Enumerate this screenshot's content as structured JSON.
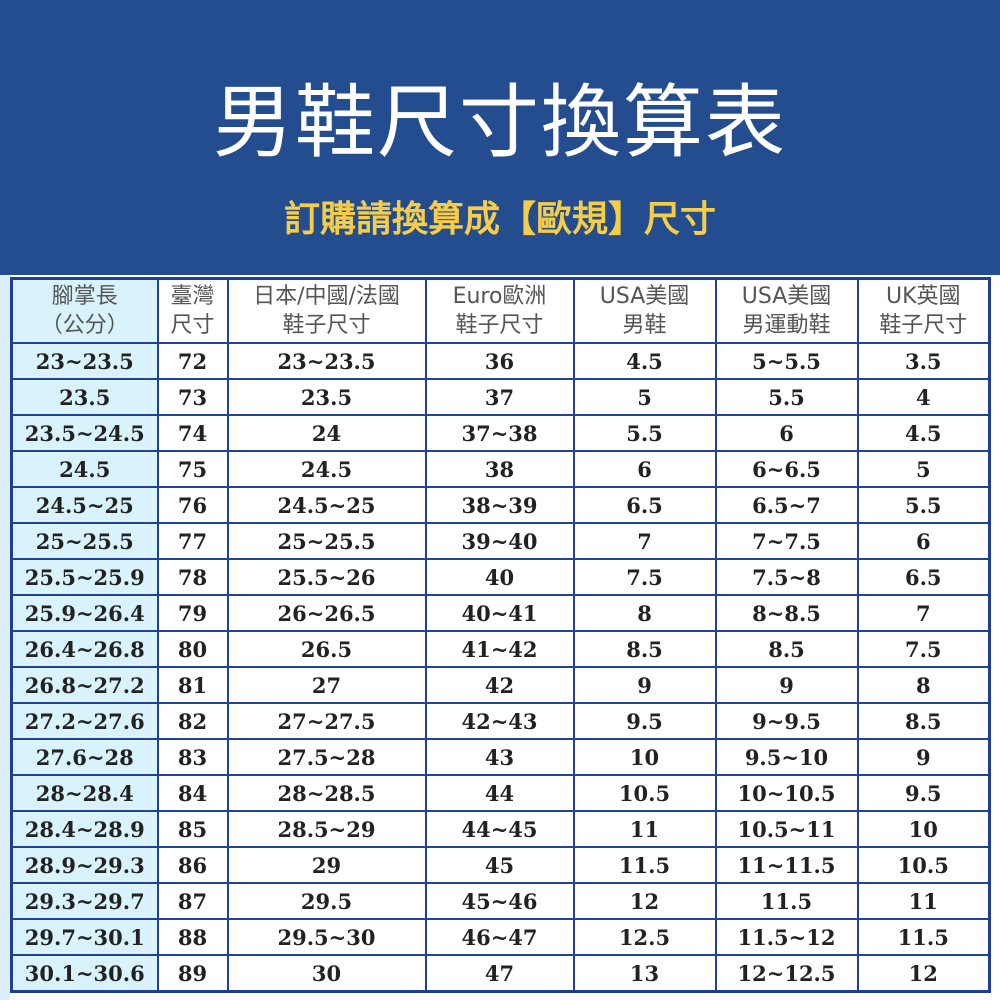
{
  "header": {
    "title": "男鞋尺寸換算表",
    "subtitle": "訂購請換算成【歐規】尺寸"
  },
  "table": {
    "columns": [
      [
        "腳掌長",
        "（公分）"
      ],
      [
        "臺灣",
        "尺寸"
      ],
      [
        "日本/中國/法國",
        "鞋子尺寸"
      ],
      [
        "Euro歐洲",
        "鞋子尺寸"
      ],
      [
        "USA美國",
        "男鞋"
      ],
      [
        "USA美國",
        "男運動鞋"
      ],
      [
        "UK英國",
        "鞋子尺寸"
      ]
    ],
    "rows": [
      [
        "23~23.5",
        "72",
        "23~23.5",
        "36",
        "4.5",
        "5~5.5",
        "3.5"
      ],
      [
        "23.5",
        "73",
        "23.5",
        "37",
        "5",
        "5.5",
        "4"
      ],
      [
        "23.5~24.5",
        "74",
        "24",
        "37~38",
        "5.5",
        "6",
        "4.5"
      ],
      [
        "24.5",
        "75",
        "24.5",
        "38",
        "6",
        "6~6.5",
        "5"
      ],
      [
        "24.5~25",
        "76",
        "24.5~25",
        "38~39",
        "6.5",
        "6.5~7",
        "5.5"
      ],
      [
        "25~25.5",
        "77",
        "25~25.5",
        "39~40",
        "7",
        "7~7.5",
        "6"
      ],
      [
        "25.5~25.9",
        "78",
        "25.5~26",
        "40",
        "7.5",
        "7.5~8",
        "6.5"
      ],
      [
        "25.9~26.4",
        "79",
        "26~26.5",
        "40~41",
        "8",
        "8~8.5",
        "7"
      ],
      [
        "26.4~26.8",
        "80",
        "26.5",
        "41~42",
        "8.5",
        "8.5",
        "7.5"
      ],
      [
        "26.8~27.2",
        "81",
        "27",
        "42",
        "9",
        "9",
        "8"
      ],
      [
        "27.2~27.6",
        "82",
        "27~27.5",
        "42~43",
        "9.5",
        "9~9.5",
        "8.5"
      ],
      [
        "27.6~28",
        "83",
        "27.5~28",
        "43",
        "10",
        "9.5~10",
        "9"
      ],
      [
        "28~28.4",
        "84",
        "28~28.5",
        "44",
        "10.5",
        "10~10.5",
        "9.5"
      ],
      [
        "28.4~28.9",
        "85",
        "28.5~29",
        "44~45",
        "11",
        "10.5~11",
        "10"
      ],
      [
        "28.9~29.3",
        "86",
        "29",
        "45",
        "11.5",
        "11~11.5",
        "10.5"
      ],
      [
        "29.3~29.7",
        "87",
        "29.5",
        "45~46",
        "12",
        "11.5",
        "11"
      ],
      [
        "29.7~30.1",
        "88",
        "29.5~30",
        "46~47",
        "12.5",
        "11.5~12",
        "11.5"
      ],
      [
        "30.1~30.6",
        "89",
        "30",
        "47",
        "13",
        "12~12.5",
        "12"
      ]
    ]
  }
}
